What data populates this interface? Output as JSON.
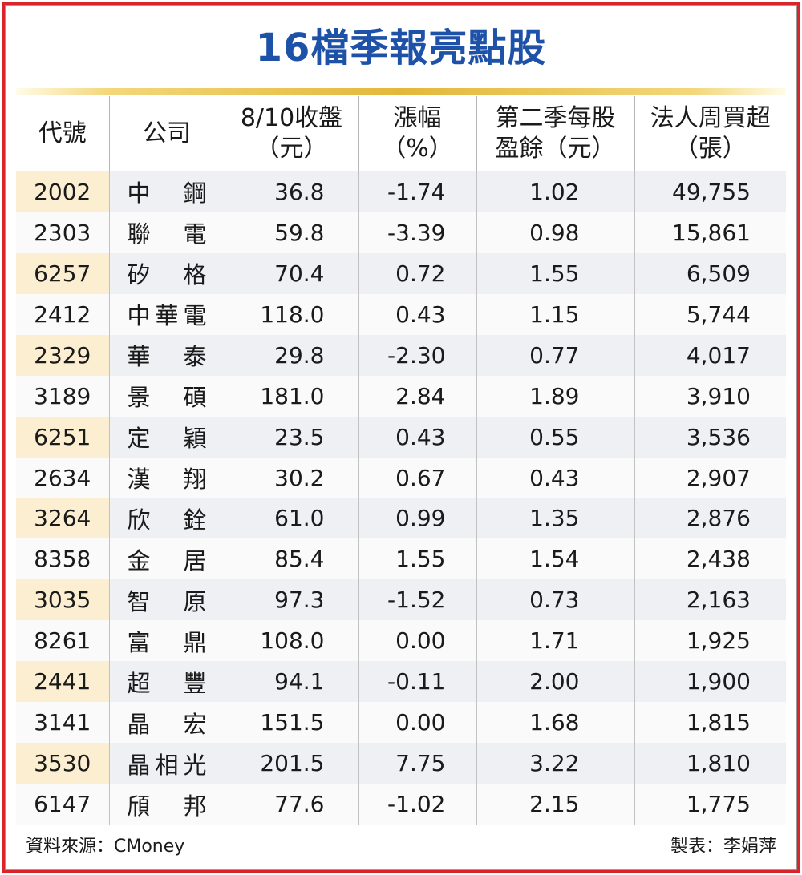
{
  "title": "16檔季報亮點股",
  "columns": [
    {
      "line1": "代號",
      "line2": ""
    },
    {
      "line1": "公司",
      "line2": ""
    },
    {
      "line1": "8/10收盤",
      "line2": "（元）"
    },
    {
      "line1": "漲幅",
      "line2": "（%）"
    },
    {
      "line1": "第二季每股",
      "line2": "盈餘（元）"
    },
    {
      "line1": "法人周買超",
      "line2": "（張）"
    }
  ],
  "rows": [
    {
      "code": "2002",
      "name": "中鋼",
      "close": "36.8",
      "change": "-1.74",
      "eps": "1.02",
      "net_buy": "49,755"
    },
    {
      "code": "2303",
      "name": "聯電",
      "close": "59.8",
      "change": "-3.39",
      "eps": "0.98",
      "net_buy": "15,861"
    },
    {
      "code": "6257",
      "name": "矽格",
      "close": "70.4",
      "change": "0.72",
      "eps": "1.55",
      "net_buy": "6,509"
    },
    {
      "code": "2412",
      "name": "中華電",
      "close": "118.0",
      "change": "0.43",
      "eps": "1.15",
      "net_buy": "5,744"
    },
    {
      "code": "2329",
      "name": "華泰",
      "close": "29.8",
      "change": "-2.30",
      "eps": "0.77",
      "net_buy": "4,017"
    },
    {
      "code": "3189",
      "name": "景碩",
      "close": "181.0",
      "change": "2.84",
      "eps": "1.89",
      "net_buy": "3,910"
    },
    {
      "code": "6251",
      "name": "定穎",
      "close": "23.5",
      "change": "0.43",
      "eps": "0.55",
      "net_buy": "3,536"
    },
    {
      "code": "2634",
      "name": "漢翔",
      "close": "30.2",
      "change": "0.67",
      "eps": "0.43",
      "net_buy": "2,907"
    },
    {
      "code": "3264",
      "name": "欣銓",
      "close": "61.0",
      "change": "0.99",
      "eps": "1.35",
      "net_buy": "2,876"
    },
    {
      "code": "8358",
      "name": "金居",
      "close": "85.4",
      "change": "1.55",
      "eps": "1.54",
      "net_buy": "2,438"
    },
    {
      "code": "3035",
      "name": "智原",
      "close": "97.3",
      "change": "-1.52",
      "eps": "0.73",
      "net_buy": "2,163"
    },
    {
      "code": "8261",
      "name": "富鼎",
      "close": "108.0",
      "change": "0.00",
      "eps": "1.71",
      "net_buy": "1,925"
    },
    {
      "code": "2441",
      "name": "超豐",
      "close": "94.1",
      "change": "-0.11",
      "eps": "2.00",
      "net_buy": "1,900"
    },
    {
      "code": "3141",
      "name": "晶宏",
      "close": "151.5",
      "change": "0.00",
      "eps": "1.68",
      "net_buy": "1,815"
    },
    {
      "code": "3530",
      "name": "晶相光",
      "close": "201.5",
      "change": "7.75",
      "eps": "3.22",
      "net_buy": "1,810"
    },
    {
      "code": "6147",
      "name": "頎邦",
      "close": "77.6",
      "change": "-1.02",
      "eps": "2.15",
      "net_buy": "1,775"
    }
  ],
  "footer": {
    "source": "資料來源：CMoney",
    "credit": "製表：李娟萍"
  },
  "colors": {
    "border": "#d8242a",
    "title": "#1d52a8",
    "gold_rule": "#e3b83a",
    "code_highlight": "#fcefd1",
    "row_stripe": "#eef0f4"
  }
}
